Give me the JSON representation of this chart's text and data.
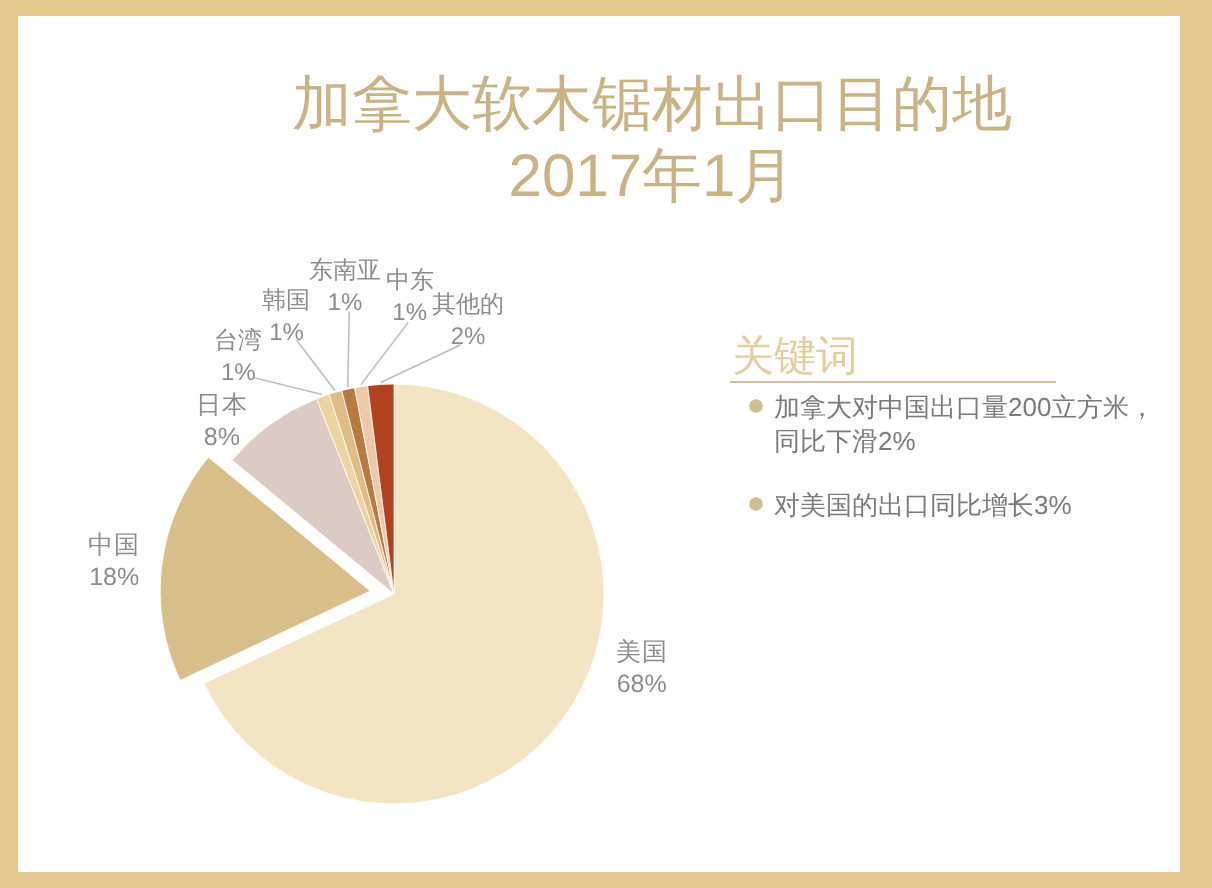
{
  "chart_data": {
    "type": "pie",
    "title": "加拿大软木锯材出口目的地",
    "subtitle": "2017年1月",
    "categories": [
      "美国",
      "中国",
      "日本",
      "台湾",
      "韩国",
      "东南亚",
      "中东",
      "其他的"
    ],
    "values": [
      68,
      18,
      8,
      1,
      1,
      1,
      1,
      2
    ],
    "colors": [
      "#f3e5c4",
      "#d8bf8a",
      "#dccac4",
      "#ebd3a2",
      "#e0bd84",
      "#b87a40",
      "#efc8aa",
      "#b1411f"
    ],
    "value_labels": [
      "68%",
      "18%",
      "8%",
      "1%",
      "1%",
      "1%",
      "1%",
      "2%"
    ],
    "annotations": [
      "关键词",
      "加拿大对中国出口量200立方米，同比下滑2%",
      "对美国的出口同比增长3%"
    ]
  }
}
